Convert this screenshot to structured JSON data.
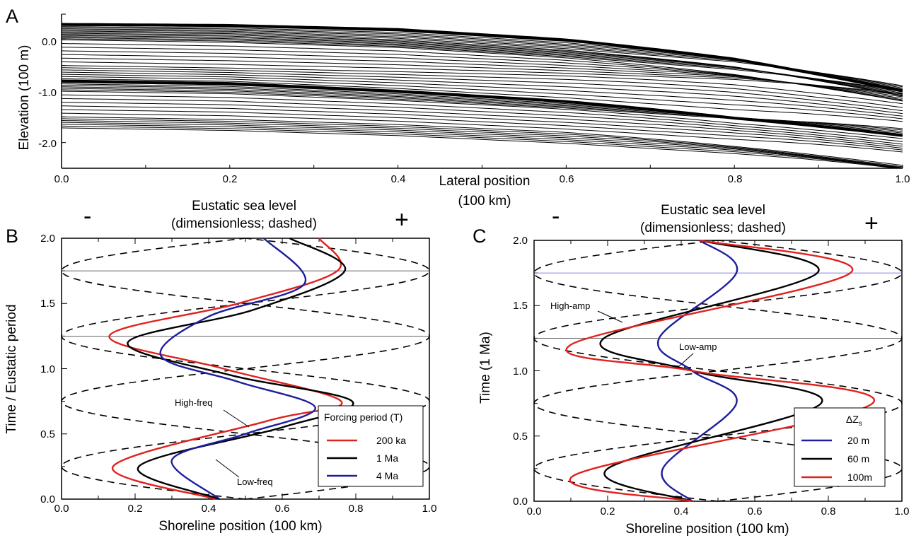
{
  "figure": {
    "panels": [
      "A",
      "B",
      "C"
    ]
  },
  "colors": {
    "red": "#e0221f",
    "black": "#000000",
    "blue": "#1e1e9c",
    "guide": "#5b5bd0",
    "dashed": "#000000"
  },
  "panel_a": {
    "letter": "A",
    "xlabel": "Lateral position",
    "ylabel": "Elevation (100 m)",
    "xticks": [
      "0.0",
      "0.2",
      "0.4",
      "0.6",
      "0.8",
      "1.0"
    ],
    "yticks": [
      "0.0",
      "-1.0",
      "-2.0"
    ]
  },
  "panel_b": {
    "letter": "B",
    "top_left_sign": "-",
    "top_right_sign": "+",
    "sea_title_1": "Eustatic sea level",
    "sea_title_2": "(dimensionless; dashed)",
    "xlabel": "Shoreline position (100 km)",
    "ylabel": "Time / Eustatic period",
    "xticks": [
      "0.0",
      "0.2",
      "0.4",
      "0.6",
      "0.8",
      "1.0"
    ],
    "yticks": [
      "0.0",
      "0.5",
      "1.0",
      "1.5",
      "2.0"
    ],
    "annotation_high": "High-freq",
    "annotation_low": "Low-freq",
    "legend_title": "Forcing period (T)",
    "legend_items": [
      "200 ka",
      "1 Ma",
      "4 Ma"
    ]
  },
  "panel_c": {
    "letter": "C",
    "top_left_sign": "-",
    "top_right_sign": "+",
    "sea_title_1": "Eustatic sea level",
    "sea_title_2": "(dimensionless; dashed)",
    "xlabel": "Shoreline position (100 km)",
    "ylabel": "Time (1 Ma)",
    "xticks": [
      "0.0",
      "0.2",
      "0.4",
      "0.6",
      "0.8",
      "1.0"
    ],
    "yticks": [
      "0.0",
      "0.5",
      "1.0",
      "1.5",
      "2.0"
    ],
    "annotation_high": "High-amp",
    "annotation_low": "Low-amp",
    "legend_title_main": "ΔZ",
    "legend_title_sub": "s",
    "legend_items": [
      "20 m",
      "60 m",
      "100m"
    ]
  },
  "chart_data": [
    {
      "panel": "A",
      "type": "line",
      "xlabel": "Lateral position",
      "ylabel": "Elevation (100 m)",
      "xlim": [
        0,
        1
      ],
      "ylim": [
        -2.5,
        0.5
      ],
      "description_note": "",
      "series": [
        {
          "values": [
            0.3,
            0.28,
            0.2,
            0.0,
            -0.3,
            -0.75
          ]
        },
        {
          "values": [
            0.15,
            0.12,
            0.0,
            -0.2,
            -0.45,
            -0.85
          ]
        },
        {
          "values": [
            0.0,
            -0.05,
            -0.15,
            -0.35,
            -0.6,
            -0.95
          ]
        },
        {
          "values": [
            -0.5,
            -0.55,
            -0.62,
            -0.7,
            -0.8,
            -1.0
          ]
        },
        {
          "values": [
            -0.8,
            -0.85,
            -1.0,
            -1.2,
            -1.45,
            -1.62
          ]
        },
        {
          "values": [
            -1.0,
            -1.05,
            -1.18,
            -1.35,
            -1.55,
            -1.68
          ]
        },
        {
          "values": [
            -1.5,
            -1.55,
            -1.65,
            -1.8,
            -2.0,
            -2.2
          ]
        },
        {
          "values": [
            -1.75,
            -1.8,
            -1.9,
            -2.05,
            -2.25,
            -2.5
          ]
        }
      ],
      "x": [
        0,
        0.2,
        0.4,
        0.6,
        0.8,
        1.0
      ]
    },
    {
      "panel": "B",
      "type": "line",
      "xlabel": "Shoreline position (100 km)",
      "ylabel": "Time / Eustatic period",
      "xlim": [
        0,
        1
      ],
      "ylim": [
        0,
        2
      ],
      "guide_lines_y": [
        1.75,
        1.25
      ],
      "series": [
        {
          "name": "200 ka",
          "color": "red",
          "x": [
            0.42,
            0.14,
            0.56,
            0.76,
            0.44,
            0.13,
            0.48,
            0.75,
            0.7
          ],
          "y": [
            0.0,
            0.25,
            0.6,
            0.75,
            1.0,
            1.25,
            1.5,
            1.75,
            2.0
          ]
        },
        {
          "name": "1 Ma",
          "color": "black",
          "x": [
            0.43,
            0.21,
            0.6,
            0.79,
            0.46,
            0.18,
            0.52,
            0.77,
            0.62
          ],
          "y": [
            0.0,
            0.25,
            0.55,
            0.75,
            0.95,
            1.2,
            1.45,
            1.75,
            2.0
          ]
        },
        {
          "name": "4 Ma",
          "color": "blue",
          "x": [
            0.43,
            0.3,
            0.5,
            0.69,
            0.48,
            0.27,
            0.4,
            0.66,
            0.55
          ],
          "y": [
            0.0,
            0.3,
            0.5,
            0.7,
            0.9,
            1.1,
            1.4,
            1.65,
            2.0
          ]
        }
      ],
      "eustatic_dashed": {
        "amplitude": 1,
        "period": 1,
        "note": ""
      }
    },
    {
      "panel": "C",
      "type": "line",
      "xlabel": "Shoreline position (100 km)",
      "ylabel": "Time (1 Ma)",
      "xlim": [
        0,
        1
      ],
      "ylim": [
        0,
        2
      ],
      "guide_lines_y": [
        1.75,
        1.25
      ],
      "series": [
        {
          "name": "20 m",
          "color": "blue",
          "x": [
            0.43,
            0.35,
            0.55,
            0.43,
            0.34,
            0.55,
            0.45
          ],
          "y": [
            0.0,
            0.25,
            0.75,
            1.0,
            1.25,
            1.75,
            2.0
          ]
        },
        {
          "name": "60 m",
          "color": "black",
          "x": [
            0.43,
            0.2,
            0.78,
            0.43,
            0.19,
            0.77,
            0.45
          ],
          "y": [
            0.0,
            0.25,
            0.75,
            1.0,
            1.25,
            1.75,
            2.0
          ]
        },
        {
          "name": "100m",
          "color": "red",
          "x": [
            0.43,
            0.11,
            0.92,
            0.43,
            0.1,
            0.86,
            0.45
          ],
          "y": [
            0.0,
            0.2,
            0.75,
            1.0,
            1.2,
            1.75,
            2.0
          ]
        }
      ],
      "eustatic_dashed": {
        "amplitude": 1,
        "period": 1
      }
    }
  ]
}
